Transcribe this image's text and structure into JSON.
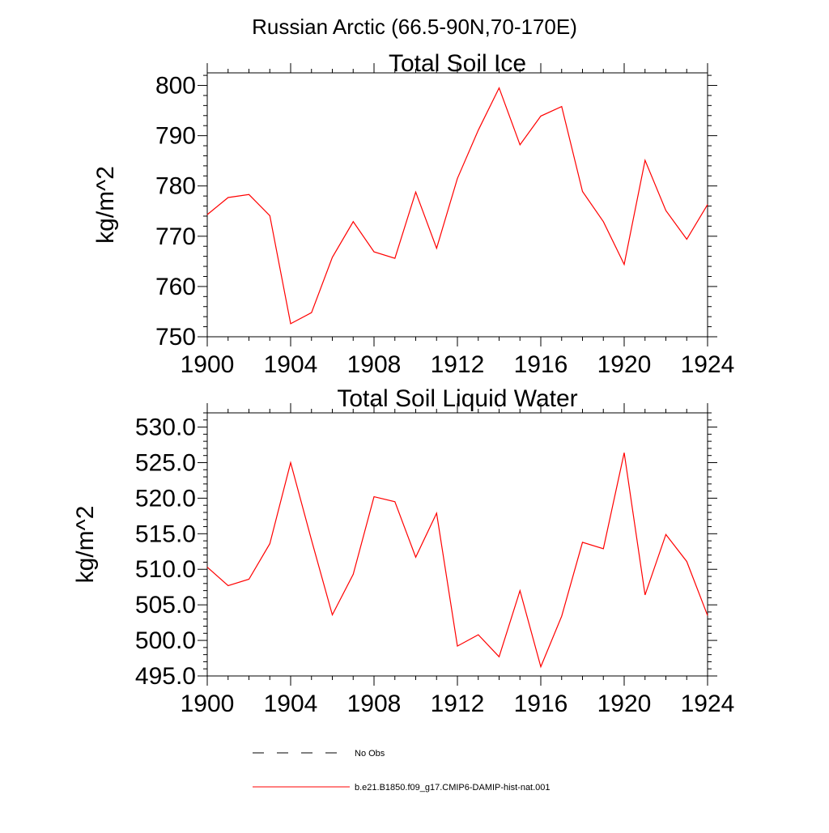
{
  "header": {
    "title": "Russian Arctic (66.5-90N,70-170E)"
  },
  "legend": {
    "items": [
      {
        "label": "No Obs",
        "color": "#000000",
        "style": "dashed"
      },
      {
        "label": "b.e21.B1850.f09_g17.CMIP6-DAMIP-hist-nat.001",
        "color": "#ff0000",
        "style": "solid"
      }
    ]
  },
  "chart_data": [
    {
      "type": "line",
      "title": "Total Soil Ice",
      "xlabel": "",
      "ylabel": "kg/m^2",
      "xlim": [
        1900,
        1924
      ],
      "ylim": [
        750,
        802.5
      ],
      "xticks": [
        1900,
        1904,
        1908,
        1912,
        1916,
        1920,
        1924
      ],
      "xtick_labels": [
        "1900",
        "1904",
        "1908",
        "1912",
        "1916",
        "1920",
        "1924"
      ],
      "yticks": [
        750,
        760,
        770,
        780,
        790,
        800
      ],
      "ytick_labels": [
        "750",
        "760",
        "770",
        "780",
        "790",
        "800"
      ],
      "grid": false,
      "x": [
        1900,
        1901,
        1902,
        1903,
        1904,
        1905,
        1906,
        1907,
        1908,
        1909,
        1910,
        1911,
        1912,
        1913,
        1914,
        1915,
        1916,
        1917,
        1918,
        1919,
        1920,
        1921,
        1922,
        1923,
        1924
      ],
      "series": [
        {
          "name": "b.e21.B1850.f09_g17.CMIP6-DAMIP-hist-nat.001",
          "color": "#ff0000",
          "values": [
            774.3,
            777.7,
            778.3,
            774.1,
            752.6,
            754.8,
            765.8,
            772.9,
            766.9,
            765.6,
            778.8,
            767.6,
            781.5,
            791.1,
            799.5,
            788.2,
            793.9,
            795.8,
            778.9,
            772.9,
            764.4,
            785.1,
            775.1,
            769.4,
            776.3
          ]
        }
      ]
    },
    {
      "type": "line",
      "title": "Total Soil Liquid Water",
      "xlabel": "",
      "ylabel": "kg/m^2",
      "xlim": [
        1900,
        1924
      ],
      "ylim": [
        495,
        532
      ],
      "xticks": [
        1900,
        1904,
        1908,
        1912,
        1916,
        1920,
        1924
      ],
      "xtick_labels": [
        "1900",
        "1904",
        "1908",
        "1912",
        "1916",
        "1920",
        "1924"
      ],
      "yticks": [
        495,
        500,
        505,
        510,
        515,
        520,
        525,
        530
      ],
      "ytick_labels": [
        "495.0",
        "500.0",
        "505.0",
        "510.0",
        "515.0",
        "520.0",
        "525.0",
        "530.0"
      ],
      "grid": false,
      "x": [
        1900,
        1901,
        1902,
        1903,
        1904,
        1905,
        1906,
        1907,
        1908,
        1909,
        1910,
        1911,
        1912,
        1913,
        1914,
        1915,
        1916,
        1917,
        1918,
        1919,
        1920,
        1921,
        1922,
        1923,
        1924
      ],
      "series": [
        {
          "name": "b.e21.B1850.f09_g17.CMIP6-DAMIP-hist-nat.001",
          "color": "#ff0000",
          "values": [
            510.3,
            507.7,
            508.6,
            513.6,
            525.0,
            514.1,
            503.6,
            509.3,
            520.2,
            519.5,
            511.7,
            517.9,
            499.2,
            500.8,
            497.7,
            507.0,
            496.3,
            503.4,
            513.8,
            512.9,
            526.4,
            506.4,
            514.9,
            511.1,
            503.5
          ]
        }
      ]
    }
  ]
}
